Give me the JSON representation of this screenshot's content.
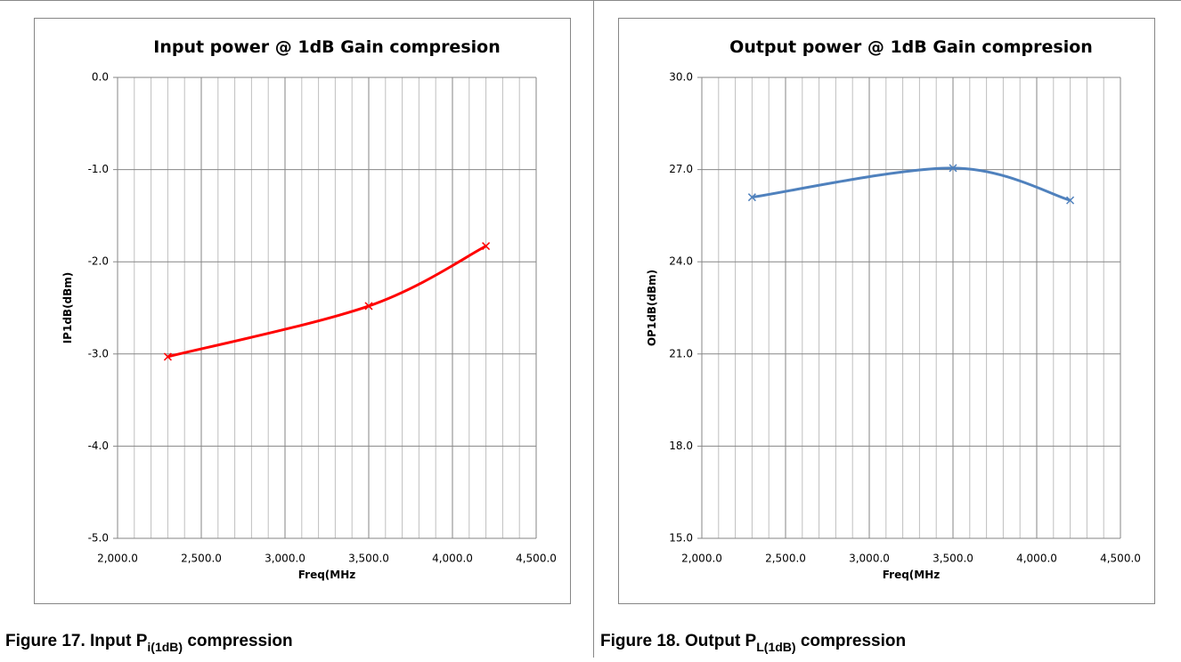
{
  "chart_data": [
    {
      "type": "line",
      "title": "Input power @ 1dB Gain compresion",
      "x_label": "Freq(MHz",
      "y_label": "IP1dB(dBm)",
      "x": [
        2300,
        3500,
        4200
      ],
      "values": [
        -3.03,
        -2.48,
        -1.83
      ],
      "color": "#ff0000",
      "smooth": true,
      "marker": "x",
      "xlim": [
        2000,
        4500
      ],
      "xticks": [
        {
          "value": 2000,
          "label": "2,000.0"
        },
        {
          "value": 2500,
          "label": "2,500.0"
        },
        {
          "value": 3000,
          "label": "3,000.0"
        },
        {
          "value": 3500,
          "label": "3,500.0"
        },
        {
          "value": 4000,
          "label": "4,000.0"
        },
        {
          "value": 4500,
          "label": "4,500.0"
        }
      ],
      "ylim": [
        -5,
        0
      ],
      "yticks": [
        {
          "value": -5,
          "label": "-5.0"
        },
        {
          "value": -4,
          "label": "-4.0"
        },
        {
          "value": -3,
          "label": "-3.0"
        },
        {
          "value": -2,
          "label": "-2.0"
        },
        {
          "value": -1,
          "label": "-1.0"
        },
        {
          "value": 0,
          "label": "0.0"
        }
      ],
      "grid": true,
      "minor_x_grid": true
    },
    {
      "type": "line",
      "title": "Output power @ 1dB Gain compresion",
      "x_label": "Freq(MHz",
      "y_label": "OP1dB(dBm)",
      "x": [
        2300,
        3500,
        4200
      ],
      "values": [
        26.1,
        27.05,
        26.0
      ],
      "color": "#4f81bd",
      "smooth": true,
      "marker": "x",
      "xlim": [
        2000,
        4500
      ],
      "xticks": [
        {
          "value": 2000,
          "label": "2,000.0"
        },
        {
          "value": 2500,
          "label": "2,500.0"
        },
        {
          "value": 3000,
          "label": "3,000.0"
        },
        {
          "value": 3500,
          "label": "3,500.0"
        },
        {
          "value": 4000,
          "label": "4,000.0"
        },
        {
          "value": 4500,
          "label": "4,500.0"
        }
      ],
      "ylim": [
        15,
        30
      ],
      "yticks": [
        {
          "value": 15,
          "label": "15.0"
        },
        {
          "value": 18,
          "label": "18.0"
        },
        {
          "value": 21,
          "label": "21.0"
        },
        {
          "value": 24,
          "label": "24.0"
        },
        {
          "value": 27,
          "label": "27.0"
        },
        {
          "value": 30,
          "label": "30.0"
        }
      ],
      "grid": true,
      "minor_x_grid": true
    }
  ],
  "captions": [
    {
      "before": "Figure 17.  Input P",
      "subscript": "i(1dB)",
      "after": " compression"
    },
    {
      "before": "Figure 18.  Output P",
      "subscript": "L(1dB)",
      "after": " compression"
    }
  ]
}
